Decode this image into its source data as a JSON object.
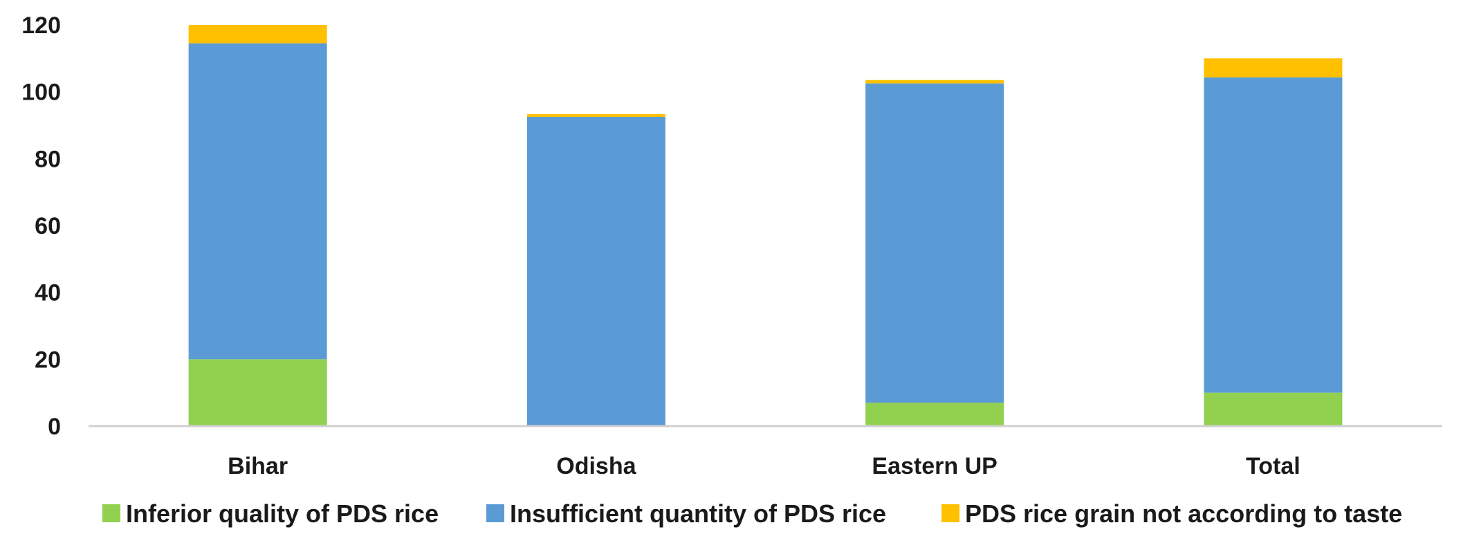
{
  "chart_data": {
    "type": "bar",
    "stacked": true,
    "title": "",
    "xlabel": "",
    "ylabel": "",
    "categories": [
      "Bihar",
      "Odisha",
      "Eastern UP",
      "Total"
    ],
    "series": [
      {
        "name": "Inferior quality of PDS rice",
        "color": "#92D050",
        "values": [
          20,
          0,
          7,
          10
        ]
      },
      {
        "name": "Insufficient quantity of PDS rice",
        "color": "#5B9BD5",
        "values": [
          94.5,
          92.5,
          95.5,
          94.3
        ]
      },
      {
        "name": "PDS rice grain not according to taste",
        "color": "#FFC000",
        "values": [
          5.5,
          0.8,
          1.0,
          5.7
        ]
      }
    ],
    "ylim": [
      0,
      120
    ],
    "yticks": [
      0,
      20,
      40,
      60,
      80,
      100,
      120
    ],
    "grid": false,
    "legend": "bottom"
  }
}
